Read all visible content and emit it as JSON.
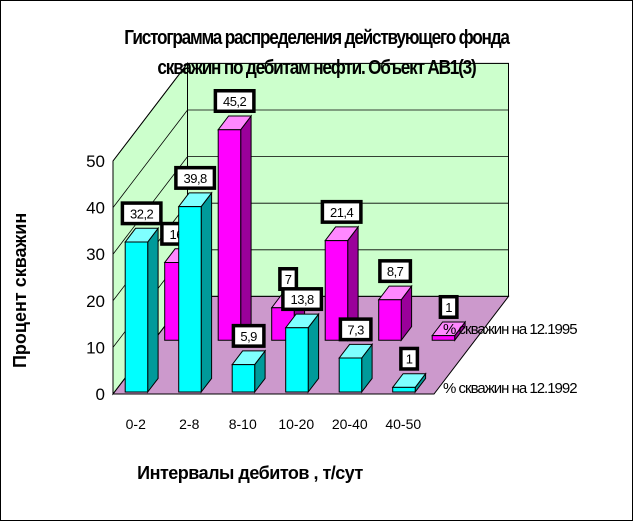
{
  "chart_data": {
    "type": "bar",
    "title_line1": "Гистограмма распределения действующего фонда",
    "title_line2": "скважин по дебитам нефти. Объект АВ1(3)",
    "xlabel": "Интервалы дебитов , т/сут",
    "ylabel": "Процент скважин",
    "categories": [
      "0-2",
      "2-8",
      "8-10",
      "10-20",
      "20-40",
      "40-50"
    ],
    "yticks": [
      "0",
      "10",
      "20",
      "30",
      "40",
      "50"
    ],
    "ylim": [
      0,
      50
    ],
    "series": [
      {
        "name": "% скважин на 12.1992",
        "values": [
          32.2,
          39.8,
          5.9,
          13.8,
          7.3,
          1
        ],
        "labels": [
          "32,2",
          "39,8",
          "5,9",
          "13,8",
          "7,3",
          "1"
        ],
        "color": "#00ffff",
        "side_color": "#009a9a",
        "top_color": "#7fffff"
      },
      {
        "name": "% скважин на 12.1995",
        "values": [
          16.7,
          45.2,
          7,
          21.4,
          8.7,
          1
        ],
        "labels": [
          "16,7",
          "45,2",
          "7",
          "21,4",
          "8,7",
          "1"
        ],
        "color": "#ff00ff",
        "side_color": "#9a009a",
        "top_color": "#ff88ff"
      }
    ],
    "wall_color": "#ccffcc",
    "floor_color": "#cc99cc",
    "grid": true,
    "legend_position": "right"
  }
}
